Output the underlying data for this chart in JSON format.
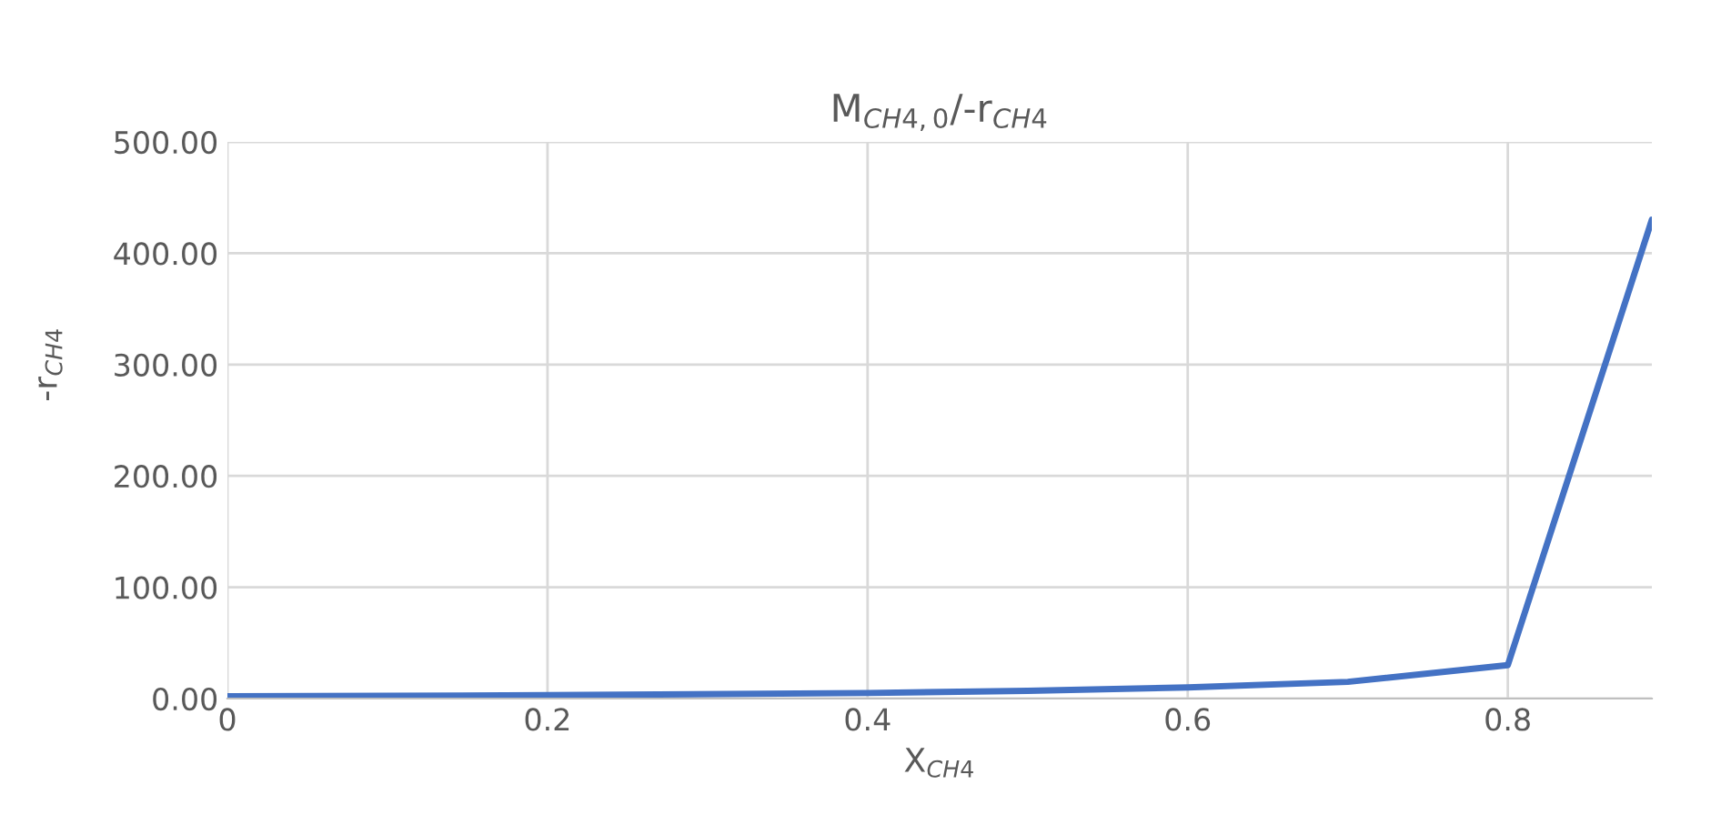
{
  "chart_data": {
    "type": "line",
    "title": "M$_{CH4,0}$/-r$_{CH4}$",
    "xlabel": "X$_{CH4}$",
    "ylabel": "-r$_{CH4}$",
    "x": [
      0,
      0.2,
      0.4,
      0.5,
      0.6,
      0.7,
      0.8,
      0.89
    ],
    "series": [
      {
        "color": "#4472c4",
        "values": [
          2,
          3,
          5,
          7,
          10,
          15,
          30,
          430
        ]
      }
    ],
    "xlim": [
      0,
      0.89
    ],
    "xticks": [
      0,
      0.2,
      0.4,
      0.6,
      0.8
    ],
    "ylim": [
      0,
      500
    ],
    "yticks": [
      {
        "value": 0,
        "label": "0.00"
      },
      {
        "value": 100,
        "label": "100.00"
      },
      {
        "value": 200,
        "label": "200.00"
      },
      {
        "value": 300,
        "label": "300.00"
      },
      {
        "value": 400,
        "label": "400.00"
      },
      {
        "value": 500,
        "label": "500.00"
      }
    ],
    "grid": true,
    "marker": "none",
    "line_style": "solid"
  }
}
